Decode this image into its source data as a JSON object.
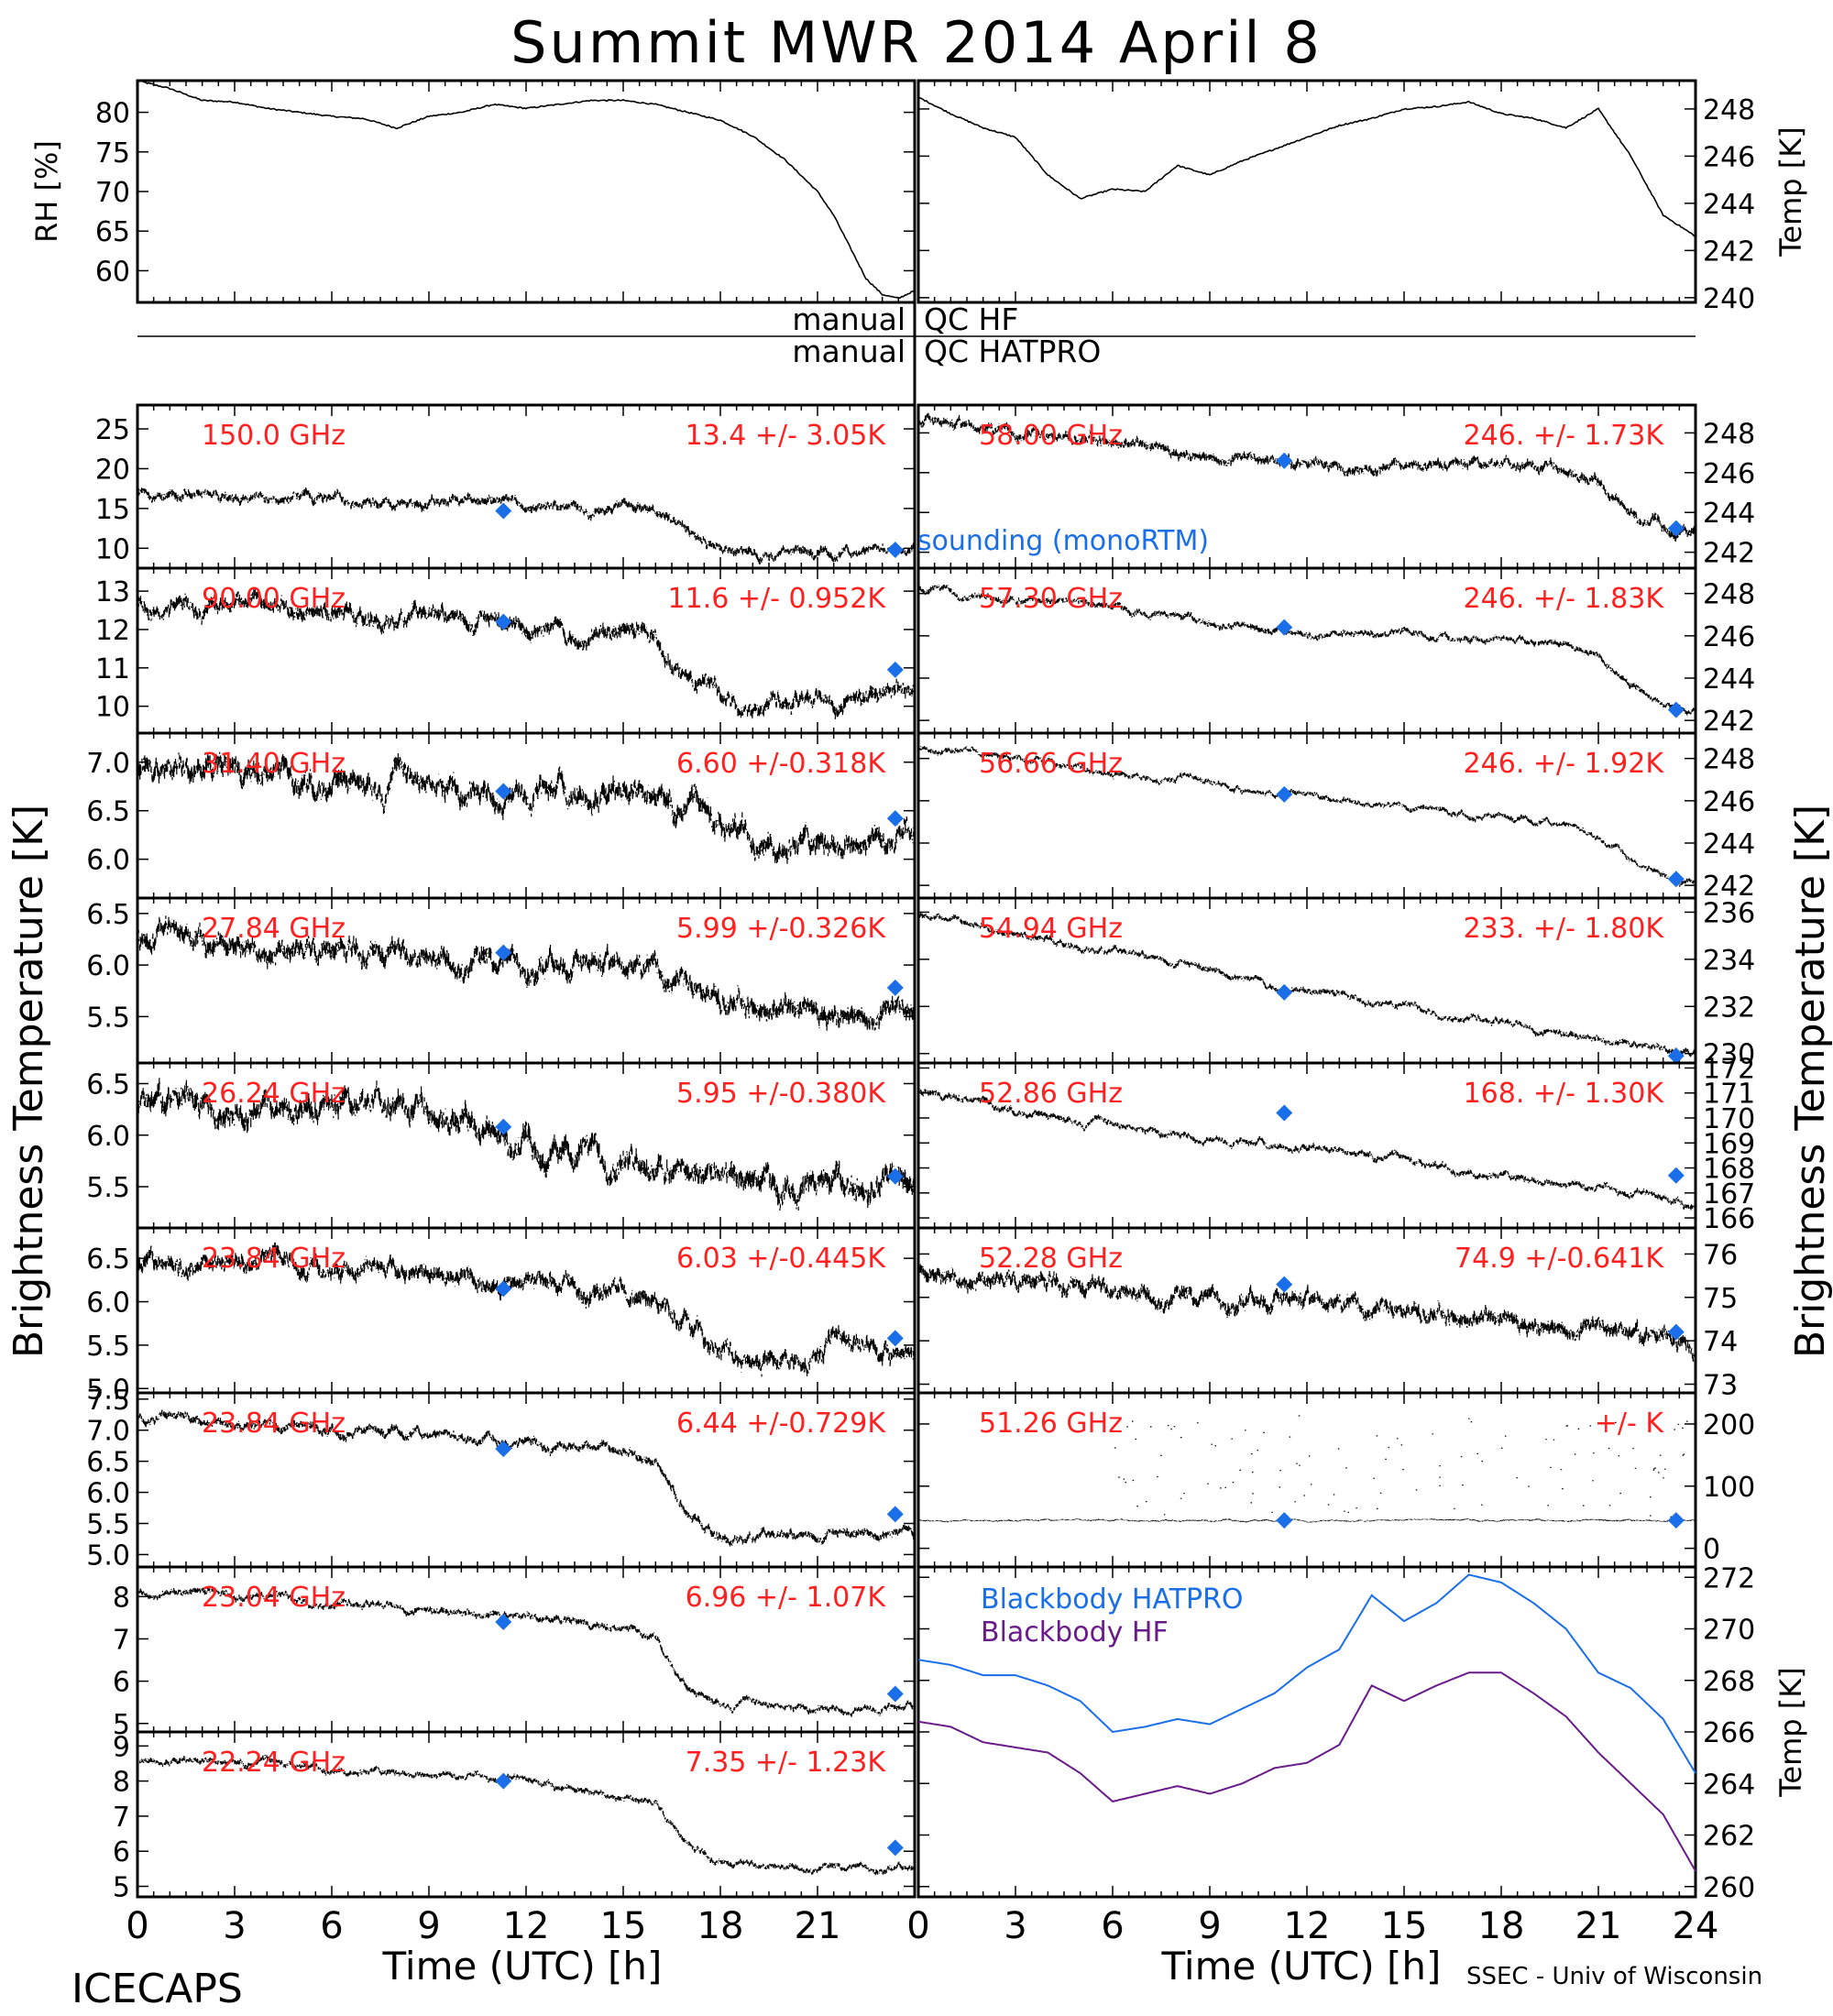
{
  "title": "Summit MWR 2014 April  8",
  "footer": {
    "left": "ICECAPS",
    "right": "SSEC - Univ of Wisconsin"
  },
  "xaxis": {
    "label": "Time (UTC) [h]",
    "ticks": [
      "0",
      "3",
      "6",
      "9",
      "12",
      "15",
      "18",
      "21",
      "24"
    ]
  },
  "left_ylabel": "Brightness Temperature [K]",
  "right_ylabel": "Brightness Temperature [K]",
  "qc": {
    "left1": "manual",
    "right1": "QC HF",
    "left2": "manual",
    "right2": "QC HATPRO"
  },
  "legend_sounding": "sounding (monoRTM)",
  "colors": {
    "data": "#000000",
    "stats": "#ff2020",
    "sounding": "#1a6fe8",
    "bb_hatpro": "#1a6fe8",
    "bb_hf": "#6a1b8a"
  },
  "chart_data": [
    {
      "type": "line",
      "panel": "rh",
      "ylabel": "RH [%]",
      "ylim": [
        56,
        84
      ],
      "ticks": [
        "60",
        "65",
        "70",
        "75",
        "80"
      ],
      "x": [
        0,
        1,
        2,
        3,
        4,
        5,
        6,
        7,
        8,
        9,
        10,
        11,
        12,
        13,
        14,
        15,
        16,
        17,
        18,
        19,
        20,
        21,
        21.5,
        22,
        22.5,
        23,
        23.5,
        24
      ],
      "values": [
        84,
        83,
        81.5,
        81.3,
        80.5,
        80,
        79.5,
        79.2,
        78,
        79.5,
        80,
        81,
        80.5,
        81,
        81.5,
        81.5,
        81,
        80,
        79,
        77,
        74,
        70,
        67,
        63,
        59,
        57,
        56.5,
        57.5
      ]
    },
    {
      "type": "line",
      "panel": "temp",
      "ylabel": "Temp [K]",
      "ylim": [
        239.8,
        249.2
      ],
      "ticks": [
        "240",
        "242",
        "244",
        "246",
        "248"
      ],
      "x": [
        0,
        1,
        2,
        3,
        4,
        5,
        6,
        7,
        8,
        9,
        10,
        11,
        12,
        13,
        14,
        15,
        16,
        17,
        18,
        19,
        20,
        21,
        22,
        23,
        24
      ],
      "values": [
        248.5,
        247.8,
        247.2,
        246.8,
        245.2,
        244.2,
        244.6,
        244.5,
        245.6,
        245.2,
        245.8,
        246.3,
        246.8,
        247.3,
        247.6,
        248,
        248.1,
        248.3,
        247.8,
        247.6,
        247.2,
        248,
        246,
        243.5,
        242.6
      ]
    },
    {
      "type": "scatter",
      "panel": "left1",
      "label": "150.0 GHz",
      "stats": "13.4 +/-  3.05K",
      "ylim": [
        7.5,
        28
      ],
      "ticks": [
        "10",
        "15",
        "20",
        "25"
      ],
      "x": [
        0,
        2,
        4,
        6,
        8,
        10,
        11,
        12,
        14,
        15,
        16,
        17,
        18,
        20,
        22,
        24
      ],
      "values": [
        17,
        16.8,
        16.5,
        16,
        15.8,
        15.5,
        16,
        15.4,
        15,
        15.4,
        14.2,
        11.8,
        9.8,
        9.2,
        9.6,
        10.2
      ],
      "noise": 1.3,
      "sounding": [
        {
          "x": 11.3,
          "y": 14.7
        },
        {
          "x": 23.4,
          "y": 9.8
        }
      ]
    },
    {
      "type": "scatter",
      "panel": "left2",
      "label": "90.00 GHz",
      "stats": "11.6 +/- 0.952K",
      "ylim": [
        9.3,
        13.6
      ],
      "ticks": [
        "10",
        "11",
        "12",
        "13"
      ],
      "x": [
        0,
        2,
        4,
        6,
        8,
        10,
        12,
        14,
        16,
        17,
        18,
        20,
        22,
        24
      ],
      "values": [
        12.6,
        12.6,
        12.5,
        12.4,
        12.3,
        12.2,
        12.0,
        11.9,
        11.7,
        10.7,
        10.3,
        10.2,
        10.3,
        10.6
      ],
      "noise": 0.45,
      "sounding": [
        {
          "x": 11.3,
          "y": 12.2
        },
        {
          "x": 23.4,
          "y": 10.95
        }
      ]
    },
    {
      "type": "scatter",
      "panel": "left3",
      "label": "31.40 GHz",
      "stats": "6.60 +/-0.318K",
      "ylim": [
        5.6,
        7.3
      ],
      "ticks": [
        "6.0",
        "6.5",
        "7.0"
      ],
      "x": [
        0,
        4,
        8,
        12,
        16,
        18,
        20,
        24
      ],
      "values": [
        6.9,
        6.85,
        6.8,
        6.7,
        6.65,
        6.35,
        6.25,
        6.2
      ],
      "noise": 0.25,
      "sounding": [
        {
          "x": 11.3,
          "y": 6.7
        },
        {
          "x": 23.4,
          "y": 6.42
        }
      ]
    },
    {
      "type": "scatter",
      "panel": "left4",
      "label": "27.84 GHz",
      "stats": "5.99 +/-0.326K",
      "ylim": [
        5.05,
        6.65
      ],
      "ticks": [
        "5.5",
        "6.0",
        "6.5"
      ],
      "x": [
        0,
        4,
        8,
        12,
        16,
        18,
        20,
        24
      ],
      "values": [
        6.3,
        6.2,
        6.15,
        6.05,
        5.95,
        5.65,
        5.55,
        5.5
      ],
      "noise": 0.22,
      "sounding": [
        {
          "x": 11.3,
          "y": 6.12
        },
        {
          "x": 23.4,
          "y": 5.78
        }
      ]
    },
    {
      "type": "scatter",
      "panel": "left5",
      "label": "26.24 GHz",
      "stats": "5.95 +/-0.380K",
      "ylim": [
        5.1,
        6.7
      ],
      "ticks": [
        "5.5",
        "6.0",
        "6.5"
      ],
      "x": [
        0,
        4,
        8,
        10,
        12,
        16,
        18,
        20,
        24
      ],
      "values": [
        6.3,
        6.3,
        6.25,
        6.2,
        5.9,
        5.75,
        5.5,
        5.5,
        5.55
      ],
      "noise": 0.25,
      "sounding": [
        {
          "x": 11.3,
          "y": 6.08
        },
        {
          "x": 23.4,
          "y": 5.6
        }
      ]
    },
    {
      "type": "scatter",
      "panel": "left6",
      "label": "23.84 GHz",
      "stats": "6.03 +/-0.445K",
      "ylim": [
        4.95,
        6.85
      ],
      "ticks": [
        "5.0",
        "5.5",
        "6.0",
        "6.5"
      ],
      "x": [
        0,
        4,
        8,
        12,
        16,
        17,
        18,
        20,
        24
      ],
      "values": [
        6.45,
        6.45,
        6.35,
        6.2,
        6.0,
        5.7,
        5.45,
        5.4,
        5.5
      ],
      "noise": 0.22,
      "sounding": [
        {
          "x": 11.3,
          "y": 6.15
        },
        {
          "x": 23.4,
          "y": 5.58
        }
      ]
    },
    {
      "type": "scatter",
      "panel": "left7",
      "label": "23.84 GHz",
      "stats": "6.44 +/-0.729K",
      "ylim": [
        4.8,
        7.6
      ],
      "ticks": [
        "5.0",
        "5.5",
        "6.0",
        "6.5",
        "7.0",
        "7.5"
      ],
      "x": [
        0,
        4,
        8,
        12,
        15,
        16,
        17,
        18,
        20,
        24
      ],
      "values": [
        7.2,
        7.1,
        7.0,
        6.8,
        6.6,
        6.5,
        5.6,
        5.3,
        5.25,
        5.35
      ],
      "noise": 0.16,
      "sounding": [
        {
          "x": 11.3,
          "y": 6.7
        },
        {
          "x": 23.4,
          "y": 5.65
        }
      ]
    },
    {
      "type": "scatter",
      "panel": "left8",
      "label": "23.04 GHz",
      "stats": "6.96 +/- 1.07K",
      "ylim": [
        4.8,
        8.7
      ],
      "ticks": [
        "5",
        "6",
        "7",
        "8"
      ],
      "x": [
        0,
        4,
        8,
        12,
        15,
        16,
        17,
        18,
        20,
        24
      ],
      "values": [
        8.1,
        8.0,
        7.8,
        7.5,
        7.2,
        7.1,
        5.8,
        5.5,
        5.4,
        5.35
      ],
      "noise": 0.18,
      "sounding": [
        {
          "x": 11.3,
          "y": 7.4
        },
        {
          "x": 23.4,
          "y": 5.7
        }
      ]
    },
    {
      "type": "scatter",
      "panel": "left9",
      "label": "22.24 GHz",
      "stats": "7.35 +/- 1.23K",
      "ylim": [
        4.7,
        9.4
      ],
      "ticks": [
        "5",
        "6",
        "7",
        "8",
        "9"
      ],
      "x": [
        0,
        4,
        8,
        12,
        15,
        16,
        17,
        18,
        20,
        24
      ],
      "values": [
        8.6,
        8.5,
        8.3,
        8.0,
        7.6,
        7.4,
        6.2,
        5.7,
        5.6,
        5.55
      ],
      "noise": 0.2,
      "sounding": [
        {
          "x": 11.3,
          "y": 8.0
        },
        {
          "x": 23.4,
          "y": 6.1
        }
      ]
    },
    {
      "type": "scatter",
      "panel": "right1",
      "label": "58.00 GHz",
      "stats": "246. +/- 1.73K",
      "ylim": [
        241.2,
        249.4
      ],
      "ticks": [
        "242",
        "244",
        "246",
        "248"
      ],
      "x": [
        0,
        2,
        4,
        6,
        8,
        10,
        12,
        14,
        16,
        18,
        20,
        21,
        22,
        23,
        24
      ],
      "values": [
        248.6,
        248.2,
        247.8,
        247.6,
        247.0,
        246.6,
        246.3,
        246.4,
        246.5,
        246.3,
        246.2,
        245.6,
        244.0,
        243.3,
        243.0
      ],
      "noise": 0.55,
      "sounding": [
        {
          "x": 11.3,
          "y": 246.6
        },
        {
          "x": 23.4,
          "y": 243.2
        }
      ]
    },
    {
      "type": "scatter",
      "panel": "right2",
      "label": "57.30 GHz",
      "stats": "246. +/- 1.83K",
      "ylim": [
        241.4,
        249.2
      ],
      "ticks": [
        "242",
        "244",
        "246",
        "248"
      ],
      "x": [
        0,
        2,
        4,
        6,
        8,
        10,
        12,
        14,
        16,
        18,
        20,
        21,
        22,
        23,
        24
      ],
      "values": [
        248.3,
        247.9,
        247.6,
        247.3,
        246.9,
        246.4,
        246.1,
        246.1,
        246.0,
        245.8,
        245.6,
        245.0,
        243.8,
        242.6,
        242.3
      ],
      "noise": 0.35,
      "sounding": [
        {
          "x": 11.3,
          "y": 246.4
        },
        {
          "x": 23.4,
          "y": 242.5
        }
      ]
    },
    {
      "type": "scatter",
      "panel": "right3",
      "label": "56.66 GHz",
      "stats": "246. +/- 1.92K",
      "ylim": [
        241.4,
        249.2
      ],
      "ticks": [
        "242",
        "244",
        "246",
        "248"
      ],
      "x": [
        0,
        2,
        4,
        6,
        8,
        10,
        12,
        14,
        16,
        18,
        20,
        21,
        22,
        23,
        24
      ],
      "values": [
        248.5,
        248.2,
        247.8,
        247.4,
        247.0,
        246.6,
        246.2,
        245.9,
        245.6,
        245.3,
        244.9,
        244.3,
        243.3,
        242.4,
        242.1
      ],
      "noise": 0.3,
      "sounding": [
        {
          "x": 11.3,
          "y": 246.3
        },
        {
          "x": 23.4,
          "y": 242.3
        }
      ]
    },
    {
      "type": "scatter",
      "panel": "right4",
      "label": "54.94 GHz",
      "stats": "233. +/- 1.80K",
      "ylim": [
        229.6,
        236.6
      ],
      "ticks": [
        "230",
        "232",
        "234",
        "236"
      ],
      "x": [
        0,
        2,
        4,
        6,
        8,
        10,
        12,
        14,
        16,
        18,
        20,
        22,
        24
      ],
      "values": [
        235.8,
        235.3,
        234.8,
        234.3,
        233.8,
        233.2,
        232.6,
        232.2,
        231.8,
        231.4,
        230.9,
        230.4,
        229.9
      ],
      "noise": 0.3,
      "sounding": [
        {
          "x": 11.3,
          "y": 232.6
        },
        {
          "x": 23.4,
          "y": 229.9
        }
      ]
    },
    {
      "type": "scatter",
      "panel": "right5",
      "label": "52.86 GHz",
      "stats": "168. +/- 1.30K",
      "ylim": [
        165.6,
        172.2
      ],
      "ticks": [
        "166",
        "167",
        "168",
        "169",
        "170",
        "171",
        "172"
      ],
      "x": [
        0,
        2,
        4,
        6,
        8,
        10,
        12,
        14,
        16,
        18,
        20,
        22,
        24
      ],
      "values": [
        171.0,
        170.6,
        170.1,
        169.7,
        169.4,
        169.0,
        168.8,
        168.5,
        168.1,
        167.8,
        167.4,
        167.0,
        166.5
      ],
      "noise": 0.3,
      "sounding": [
        {
          "x": 11.3,
          "y": 170.2
        },
        {
          "x": 23.4,
          "y": 167.7
        }
      ]
    },
    {
      "type": "scatter",
      "panel": "right6",
      "label": "52.28 GHz",
      "stats": "74.9 +/-0.641K",
      "ylim": [
        72.8,
        76.6
      ],
      "ticks": [
        "73",
        "74",
        "75",
        "76"
      ],
      "x": [
        0,
        4,
        8,
        12,
        16,
        20,
        24
      ],
      "values": [
        75.6,
        75.4,
        75.1,
        74.9,
        74.6,
        74.3,
        73.9
      ],
      "noise": 0.4,
      "sounding": [
        {
          "x": 11.3,
          "y": 75.3
        },
        {
          "x": 23.4,
          "y": 74.2
        }
      ]
    },
    {
      "type": "scatter",
      "panel": "right7",
      "label": "51.26 GHz",
      "stats": "+/-       K",
      "ylim": [
        -30,
        250
      ],
      "ticks": [
        "0",
        "100",
        "200"
      ],
      "x": [
        0,
        24
      ],
      "values": [
        45,
        45
      ],
      "noise": 3,
      "sounding": [
        {
          "x": 11.3,
          "y": 45
        },
        {
          "x": 23.4,
          "y": 45
        }
      ]
    },
    {
      "type": "line",
      "panel": "blackbody",
      "ylabel": "Temp [K]",
      "ylim": [
        259.6,
        272.4
      ],
      "ticks": [
        "260",
        "262",
        "264",
        "266",
        "268",
        "270",
        "272"
      ],
      "series": [
        {
          "name": "Blackbody HATPRO",
          "x": [
            0,
            1,
            2,
            3,
            4,
            5,
            6,
            7,
            8,
            9,
            10,
            11,
            12,
            13,
            14,
            15,
            16,
            17,
            18,
            19,
            20,
            21,
            22,
            23,
            24
          ],
          "values": [
            268.8,
            268.6,
            268.2,
            268.2,
            267.8,
            267.2,
            266.0,
            266.2,
            266.5,
            266.3,
            266.9,
            267.5,
            268.5,
            269.2,
            271.3,
            270.3,
            271.0,
            272.1,
            271.8,
            271.0,
            270.0,
            268.3,
            267.7,
            266.5,
            264.4
          ]
        },
        {
          "name": "Blackbody HF",
          "x": [
            0,
            1,
            2,
            3,
            4,
            5,
            6,
            7,
            8,
            9,
            10,
            11,
            12,
            13,
            14,
            15,
            16,
            17,
            18,
            19,
            20,
            21,
            22,
            23,
            24
          ],
          "values": [
            266.4,
            266.2,
            265.6,
            265.4,
            265.2,
            264.4,
            263.3,
            263.6,
            263.9,
            263.6,
            264.0,
            264.6,
            264.8,
            265.5,
            267.8,
            267.2,
            267.8,
            268.3,
            268.3,
            267.5,
            266.6,
            265.2,
            264.0,
            262.8,
            260.6
          ]
        }
      ]
    }
  ]
}
